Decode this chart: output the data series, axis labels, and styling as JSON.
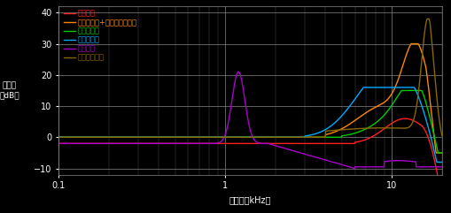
{
  "title": "",
  "xlabel": "周波数（kHz）",
  "ylabel": "振動比\n（dB）",
  "xlim": [
    0.1,
    20
  ],
  "ylim": [
    -12,
    42
  ],
  "yticks": [
    -10,
    0,
    10,
    20,
    30,
    40
  ],
  "background_color": "#000000",
  "grid_color": "#555555",
  "text_color": "#ffffff",
  "legend": [
    {
      "label": "ネジ止め",
      "color": "#ff2020"
    },
    {
      "label": "瞬間接着剤+カプトンテープ",
      "color": "#ff8800"
    },
    {
      "label": "両面テープ",
      "color": "#00cc00"
    },
    {
      "label": "マグネット",
      "color": "#00aaff"
    },
    {
      "label": "プローブ",
      "color": "#aa00cc"
    },
    {
      "label": "絶縁スペーサ",
      "color": "#886600"
    }
  ]
}
